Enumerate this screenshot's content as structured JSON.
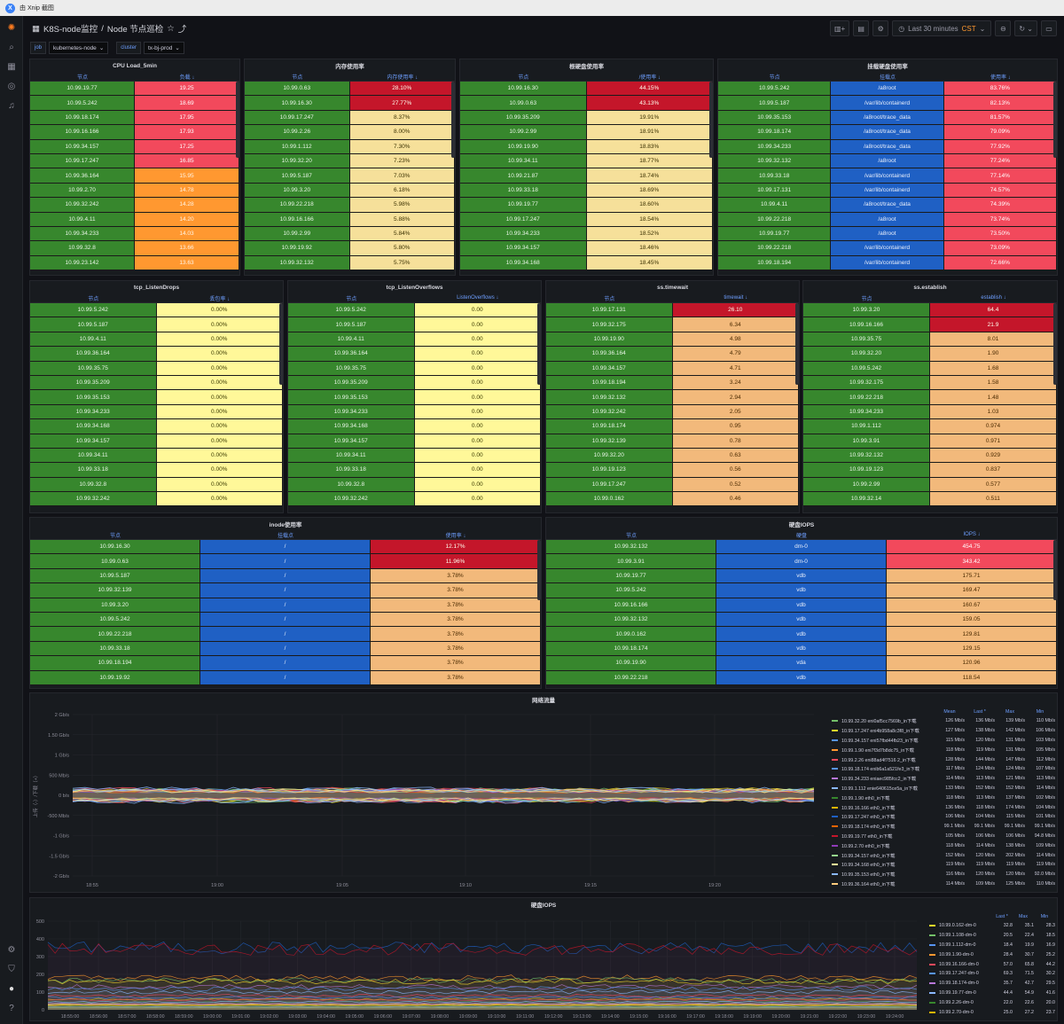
{
  "capture_bar": {
    "text": "由 Xnip 截图"
  },
  "header": {
    "title": "K8S-node监控",
    "separator": "/",
    "subtitle": "Node 节点巡检",
    "time_range": "Last 30 minutes",
    "timezone": "CST"
  },
  "variables": [
    {
      "label": "job",
      "value": "kubernetes-node"
    },
    {
      "label": "cluster",
      "value": "tx-bj-prod"
    }
  ],
  "panels": {
    "cpu": {
      "title": "CPU Load_5min",
      "columns": [
        "节点",
        "负载 ↓"
      ],
      "rows": [
        [
          "10.99.19.77",
          "19.25"
        ],
        [
          "10.99.5.242",
          "18.69"
        ],
        [
          "10.99.18.174",
          "17.95"
        ],
        [
          "10.99.16.166",
          "17.93"
        ],
        [
          "10.99.34.157",
          "17.25"
        ],
        [
          "10.99.17.247",
          "16.85"
        ],
        [
          "10.99.36.164",
          "15.95"
        ],
        [
          "10.99.2.70",
          "14.78"
        ],
        [
          "10.99.32.242",
          "14.28"
        ],
        [
          "10.99.4.11",
          "14.20"
        ],
        [
          "10.99.34.233",
          "14.03"
        ],
        [
          "10.99.32.8",
          "13.66"
        ],
        [
          "10.99.23.142",
          "13.63"
        ]
      ]
    },
    "mem": {
      "title": "内存使用率",
      "columns": [
        "节点",
        "内存使用率 ↓"
      ],
      "rows": [
        [
          "10.99.0.63",
          "28.10%"
        ],
        [
          "10.99.16.30",
          "27.77%"
        ],
        [
          "10.99.17.247",
          "8.37%"
        ],
        [
          "10.99.2.26",
          "8.00%"
        ],
        [
          "10.99.1.112",
          "7.30%"
        ],
        [
          "10.99.32.20",
          "7.23%"
        ],
        [
          "10.99.5.187",
          "7.03%"
        ],
        [
          "10.99.3.20",
          "6.18%"
        ],
        [
          "10.99.22.218",
          "5.98%"
        ],
        [
          "10.99.16.166",
          "5.88%"
        ],
        [
          "10.99.2.99",
          "5.84%"
        ],
        [
          "10.99.19.92",
          "5.80%"
        ],
        [
          "10.99.32.132",
          "5.75%"
        ]
      ]
    },
    "rootdisk": {
      "title": "根硬盘使用率",
      "columns": [
        "节点",
        "/使用率 ↓"
      ],
      "rows": [
        [
          "10.99.16.30",
          "44.15%"
        ],
        [
          "10.99.0.63",
          "43.13%"
        ],
        [
          "10.99.35.209",
          "19.91%"
        ],
        [
          "10.99.2.99",
          "18.91%"
        ],
        [
          "10.99.19.90",
          "18.83%"
        ],
        [
          "10.99.34.11",
          "18.77%"
        ],
        [
          "10.99.21.87",
          "18.74%"
        ],
        [
          "10.99.33.18",
          "18.69%"
        ],
        [
          "10.99.19.77",
          "18.60%"
        ],
        [
          "10.99.17.247",
          "18.54%"
        ],
        [
          "10.99.34.233",
          "18.52%"
        ],
        [
          "10.99.34.157",
          "18.46%"
        ],
        [
          "10.99.34.168",
          "18.45%"
        ]
      ]
    },
    "mountdisk": {
      "title": "挂载硬盘使用率",
      "columns": [
        "节点",
        "挂载点",
        "使用率 ↓"
      ],
      "rows": [
        [
          "10.99.5.242",
          "/a8root",
          "83.76%"
        ],
        [
          "10.99.5.187",
          "/var/lib/containerd",
          "82.13%"
        ],
        [
          "10.99.35.153",
          "/a8root/trace_data",
          "81.57%"
        ],
        [
          "10.99.18.174",
          "/a8root/trace_data",
          "79.09%"
        ],
        [
          "10.99.34.233",
          "/a8root/trace_data",
          "77.92%"
        ],
        [
          "10.99.32.132",
          "/a8root",
          "77.24%"
        ],
        [
          "10.99.33.18",
          "/var/lib/containerd",
          "77.14%"
        ],
        [
          "10.99.17.131",
          "/var/lib/containerd",
          "74.57%"
        ],
        [
          "10.99.4.11",
          "/a8root/trace_data",
          "74.39%"
        ],
        [
          "10.99.22.218",
          "/a8root",
          "73.74%"
        ],
        [
          "10.99.19.77",
          "/a8root",
          "73.50%"
        ],
        [
          "10.99.22.218",
          "/var/lib/containerd",
          "73.09%"
        ],
        [
          "10.99.18.194",
          "/var/lib/containerd",
          "72.66%"
        ]
      ]
    },
    "drops": {
      "title": "tcp_ListenDrops",
      "columns": [
        "节点",
        "丢包率 ↓"
      ],
      "rows": [
        [
          "10.99.5.242",
          "0.00%"
        ],
        [
          "10.99.5.187",
          "0.00%"
        ],
        [
          "10.99.4.11",
          "0.00%"
        ],
        [
          "10.99.36.164",
          "0.00%"
        ],
        [
          "10.99.35.75",
          "0.00%"
        ],
        [
          "10.99.35.209",
          "0.00%"
        ],
        [
          "10.99.35.153",
          "0.00%"
        ],
        [
          "10.99.34.233",
          "0.00%"
        ],
        [
          "10.99.34.168",
          "0.00%"
        ],
        [
          "10.99.34.157",
          "0.00%"
        ],
        [
          "10.99.34.11",
          "0.00%"
        ],
        [
          "10.99.33.18",
          "0.00%"
        ],
        [
          "10.99.32.8",
          "0.00%"
        ],
        [
          "10.99.32.242",
          "0.00%"
        ]
      ]
    },
    "overflows": {
      "title": "tcp_ListenOverflows",
      "columns": [
        "节点",
        "ListenOverflows ↓"
      ],
      "rows": [
        [
          "10.99.5.242",
          "0.00"
        ],
        [
          "10.99.5.187",
          "0.00"
        ],
        [
          "10.99.4.11",
          "0.00"
        ],
        [
          "10.99.36.164",
          "0.00"
        ],
        [
          "10.99.35.75",
          "0.00"
        ],
        [
          "10.99.35.209",
          "0.00"
        ],
        [
          "10.99.35.153",
          "0.00"
        ],
        [
          "10.99.34.233",
          "0.00"
        ],
        [
          "10.99.34.168",
          "0.00"
        ],
        [
          "10.99.34.157",
          "0.00"
        ],
        [
          "10.99.34.11",
          "0.00"
        ],
        [
          "10.99.33.18",
          "0.00"
        ],
        [
          "10.99.32.8",
          "0.00"
        ],
        [
          "10.99.32.242",
          "0.00"
        ]
      ]
    },
    "timewait": {
      "title": "ss.timewait",
      "columns": [
        "节点",
        "timewait ↓"
      ],
      "rows": [
        [
          "10.99.17.131",
          "26.10"
        ],
        [
          "10.99.32.175",
          "6.34"
        ],
        [
          "10.99.19.90",
          "4.98"
        ],
        [
          "10.99.36.164",
          "4.79"
        ],
        [
          "10.99.34.157",
          "4.71"
        ],
        [
          "10.99.18.194",
          "3.24"
        ],
        [
          "10.99.32.132",
          "2.94"
        ],
        [
          "10.99.32.242",
          "2.05"
        ],
        [
          "10.99.18.174",
          "0.95"
        ],
        [
          "10.99.32.139",
          "0.78"
        ],
        [
          "10.99.32.20",
          "0.63"
        ],
        [
          "10.99.19.123",
          "0.56"
        ],
        [
          "10.99.17.247",
          "0.52"
        ],
        [
          "10.99.0.162",
          "0.46"
        ]
      ]
    },
    "establish": {
      "title": "ss.establish",
      "columns": [
        "节点",
        "establish ↓"
      ],
      "rows": [
        [
          "10.99.3.20",
          "64.4"
        ],
        [
          "10.99.16.166",
          "21.9"
        ],
        [
          "10.99.35.75",
          "8.01"
        ],
        [
          "10.99.32.20",
          "1.90"
        ],
        [
          "10.99.5.242",
          "1.68"
        ],
        [
          "10.99.32.175",
          "1.58"
        ],
        [
          "10.99.22.218",
          "1.48"
        ],
        [
          "10.99.34.233",
          "1.03"
        ],
        [
          "10.99.1.112",
          "0.974"
        ],
        [
          "10.99.3.91",
          "0.971"
        ],
        [
          "10.99.32.132",
          "0.929"
        ],
        [
          "10.99.19.123",
          "0.837"
        ],
        [
          "10.99.2.99",
          "0.577"
        ],
        [
          "10.99.32.14",
          "0.511"
        ]
      ]
    },
    "inode": {
      "title": "inode使用率",
      "columns": [
        "节点",
        "挂载点",
        "使用率 ↓"
      ],
      "rows": [
        [
          "10.99.16.30",
          "/",
          "12.17%"
        ],
        [
          "10.99.0.63",
          "/",
          "11.96%"
        ],
        [
          "10.99.5.187",
          "/",
          "3.78%"
        ],
        [
          "10.99.32.139",
          "/",
          "3.78%"
        ],
        [
          "10.99.3.20",
          "/",
          "3.78%"
        ],
        [
          "10.99.5.242",
          "/",
          "3.78%"
        ],
        [
          "10.99.22.218",
          "/",
          "3.78%"
        ],
        [
          "10.99.33.18",
          "/",
          "3.78%"
        ],
        [
          "10.99.18.194",
          "/",
          "3.78%"
        ],
        [
          "10.99.19.92",
          "/",
          "3.78%"
        ]
      ]
    },
    "iops": {
      "title": "硬盘IOPS",
      "columns": [
        "节点",
        "硬盘",
        "IOPS ↓"
      ],
      "rows": [
        [
          "10.99.32.132",
          "dm-0",
          "454.75"
        ],
        [
          "10.99.3.91",
          "dm-0",
          "343.42"
        ],
        [
          "10.99.19.77",
          "vdb",
          "175.71"
        ],
        [
          "10.99.5.242",
          "vdb",
          "169.47"
        ],
        [
          "10.99.16.166",
          "vdb",
          "160.67"
        ],
        [
          "10.99.32.132",
          "vdb",
          "159.05"
        ],
        [
          "10.99.0.162",
          "vdb",
          "129.81"
        ],
        [
          "10.99.18.174",
          "vdb",
          "129.15"
        ],
        [
          "10.99.19.90",
          "vda",
          "120.96"
        ],
        [
          "10.99.22.218",
          "vdb",
          "118.54"
        ]
      ]
    }
  },
  "net_chart": {
    "title": "网络流量",
    "ylabel": "上传（-）/下载（+）",
    "yticks": [
      "2 Gb/s",
      "1.50 Gb/s",
      "1 Gb/s",
      "500 Mb/s",
      "0 b/s",
      "-500 Mb/s",
      "-1 Gb/s",
      "-1.5 Gb/s",
      "-2 Gb/s"
    ],
    "xticks": [
      "18:55",
      "19:00",
      "19:05",
      "19:10",
      "19:15",
      "19:20"
    ],
    "legend_cols": [
      "Mean",
      "Last *",
      "Max",
      "Min"
    ],
    "legend": [
      [
        "#73bf69",
        "10.99.32.20 eni0af5cc7569b_in下载",
        "126 Mb/s",
        "136 Mb/s",
        "139 Mb/s",
        "110 Mb/s"
      ],
      [
        "#fade2a",
        "10.99.17.247 eni4b958a8c3f8_in下载",
        "127 Mb/s",
        "138 Mb/s",
        "142 Mb/s",
        "106 Mb/s"
      ],
      [
        "#5794f2",
        "10.99.34.157 eni57fbd44fb23_in下载",
        "115 Mb/s",
        "120 Mb/s",
        "131 Mb/s",
        "103 Mb/s"
      ],
      [
        "#ff9830",
        "10.99.1.90 eni7f3d7b8dc75_in下载",
        "118 Mb/s",
        "119 Mb/s",
        "131 Mb/s",
        "105 Mb/s"
      ],
      [
        "#f2495c",
        "10.99.2.26 eni88ad4f7516 2_in下载",
        "128 Mb/s",
        "144 Mb/s",
        "147 Mb/s",
        "112 Mb/s"
      ],
      [
        "#5794f2",
        "10.99.18.174 enib6a1a521fe3_in下载",
        "117 Mb/s",
        "124 Mb/s",
        "124 Mb/s",
        "107 Mb/s"
      ],
      [
        "#b877d9",
        "10.99.34.233 eniaec985fcc2_in下载",
        "114 Mb/s",
        "113 Mb/s",
        "121 Mb/s",
        "113 Mb/s"
      ],
      [
        "#8ab8ff",
        "10.99.1.112 enie640615ce5a_in下载",
        "133 Mb/s",
        "152 Mb/s",
        "152 Mb/s",
        "114 Mb/s"
      ],
      [
        "#37872d",
        "10.99.1.90 eth0_in下载",
        "118 Mb/s",
        "113 Mb/s",
        "137 Mb/s",
        "102 Mb/s"
      ],
      [
        "#e0b400",
        "10.99.16.166 eth0_in下载",
        "136 Mb/s",
        "118 Mb/s",
        "174 Mb/s",
        "104 Mb/s"
      ],
      [
        "#1f60c4",
        "10.99.17.247 eth0_in下载",
        "106 Mb/s",
        "104 Mb/s",
        "115 Mb/s",
        "101 Mb/s"
      ],
      [
        "#fa6400",
        "10.99.18.174 eth0_in下载",
        "99.1 Mb/s",
        "99.1 Mb/s",
        "99.1 Mb/s",
        "99.1 Mb/s"
      ],
      [
        "#c4162a",
        "10.99.19.77 eth0_in下载",
        "105 Mb/s",
        "106 Mb/s",
        "106 Mb/s",
        "94.8 Mb/s"
      ],
      [
        "#8f3bb8",
        "10.99.2.70 eth0_in下载",
        "118 Mb/s",
        "114 Mb/s",
        "138 Mb/s",
        "109 Mb/s"
      ],
      [
        "#96d98d",
        "10.99.34.157 eth0_in下载",
        "152 Mb/s",
        "120 Mb/s",
        "202 Mb/s",
        "114 Mb/s"
      ],
      [
        "#fff899",
        "10.99.34.168 eth0_in下载",
        "119 Mb/s",
        "119 Mb/s",
        "119 Mb/s",
        "119 Mb/s"
      ],
      [
        "#8ab8ff",
        "10.99.35.153 eth0_in下载",
        "116 Mb/s",
        "120 Mb/s",
        "120 Mb/s",
        "92.0 Mb/s"
      ],
      [
        "#ffcb7d",
        "10.99.36.164 eth0_in下载",
        "114 Mb/s",
        "109 Mb/s",
        "125 Mb/s",
        "110 Mb/s"
      ]
    ]
  },
  "iops_chart": {
    "title": "硬盘IOPS",
    "yticks": [
      "500",
      "400",
      "300",
      "200",
      "100",
      "0"
    ],
    "xticks": [
      "18:55:00",
      "18:56:00",
      "18:57:00",
      "18:58:00",
      "18:59:00",
      "19:00:00",
      "19:01:00",
      "19:02:00",
      "19:03:00",
      "19:04:00",
      "19:05:00",
      "19:06:00",
      "19:07:00",
      "19:08:00",
      "19:09:00",
      "19:10:00",
      "19:11:00",
      "19:12:00",
      "19:13:00",
      "19:14:00",
      "19:15:00",
      "19:16:00",
      "19:17:00",
      "19:18:00",
      "19:19:00",
      "19:20:00",
      "19:21:00",
      "19:22:00",
      "19:23:00",
      "19:24:00"
    ],
    "legend_cols": [
      "Last *",
      "Max",
      "Min"
    ],
    "legend": [
      [
        "#fade2a",
        "10.99.0.162-dm-0",
        "32.8",
        "35.1",
        "28.3"
      ],
      [
        "#73bf69",
        "10.99.1.108-dm-0",
        "20.5",
        "22.4",
        "18.5"
      ],
      [
        "#5794f2",
        "10.99.1.112-dm-0",
        "18.4",
        "19.9",
        "16.9"
      ],
      [
        "#ff9830",
        "10.99.1.90-dm-0",
        "28.4",
        "30.7",
        "25.2"
      ],
      [
        "#f2495c",
        "10.99.16.166-dm-0",
        "57.0",
        "65.8",
        "44.2"
      ],
      [
        "#5794f2",
        "10.99.17.247-dm-0",
        "69.3",
        "71.5",
        "30.2"
      ],
      [
        "#b877d9",
        "10.99.18.174-dm-0",
        "35.7",
        "42.7",
        "29.5"
      ],
      [
        "#8ab8ff",
        "10.99.19.77-dm-0",
        "44.4",
        "54.9",
        "41.6"
      ],
      [
        "#37872d",
        "10.99.2.26-dm-0",
        "22.0",
        "22.6",
        "20.0"
      ],
      [
        "#e0b400",
        "10.99.2.70-dm-0",
        "25.0",
        "27.2",
        "23.7"
      ]
    ]
  },
  "colors": {
    "green": "#37872d",
    "blue": "#1f60c4",
    "red": "#c4162a",
    "orange": "#ff9830",
    "yellow": "#f6e09a"
  }
}
